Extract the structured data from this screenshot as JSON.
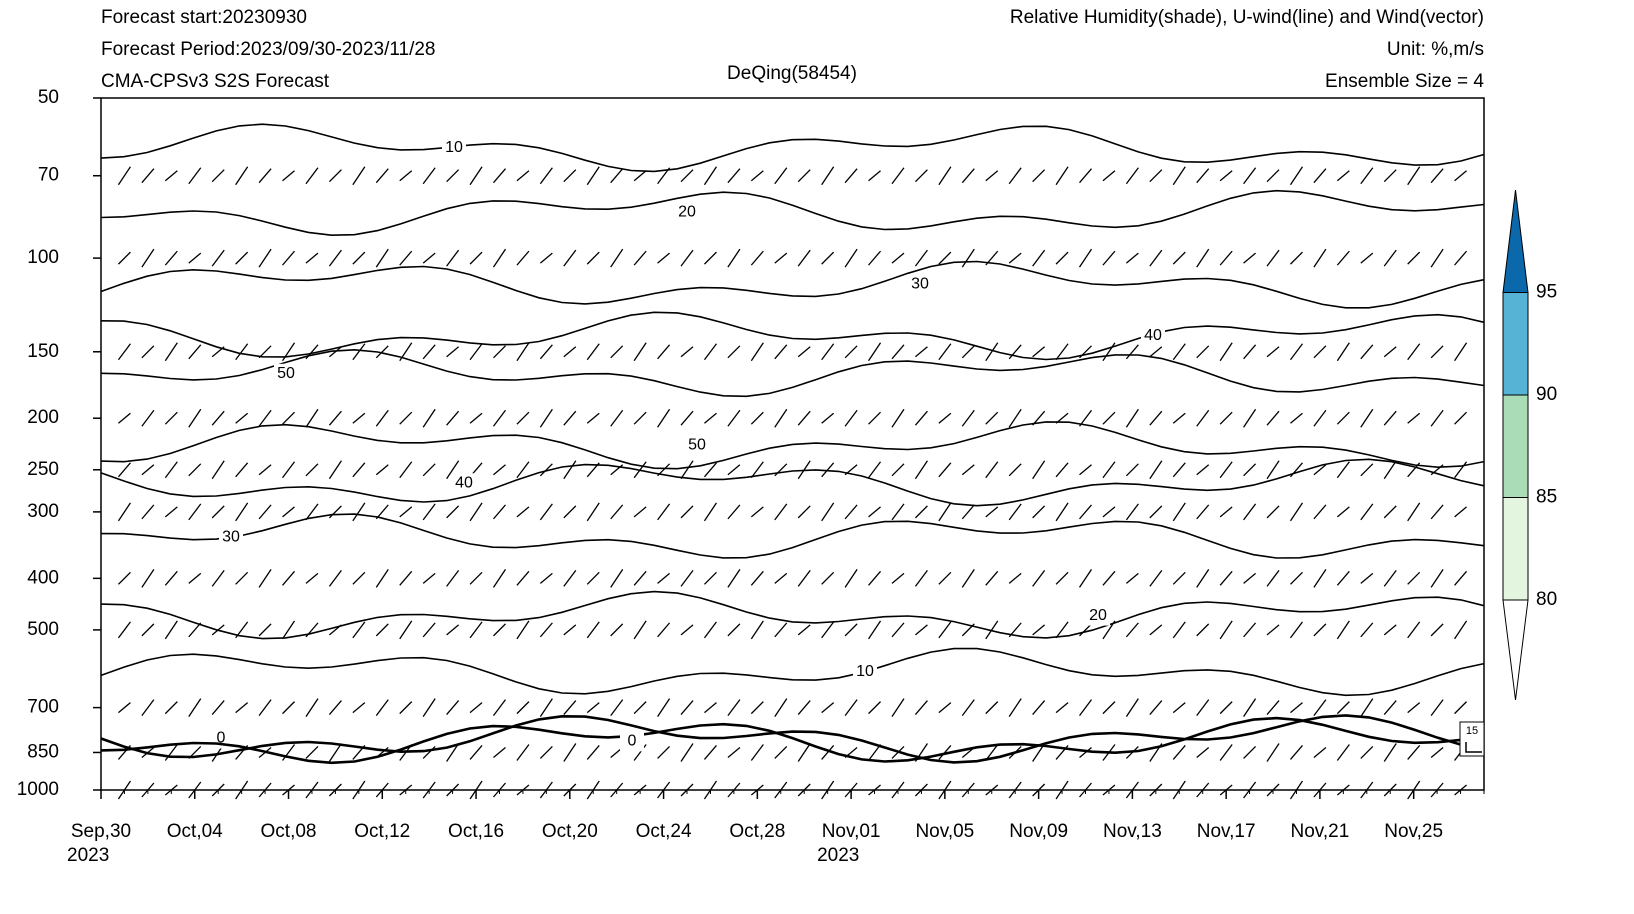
{
  "chart_data": {
    "type": "contour",
    "title": "DeQing(58454)",
    "header_left": [
      "Forecast start:20230930",
      "Forecast Period:2023/09/30-2023/11/28",
      "CMA-CPSv3 S2S Forecast"
    ],
    "header_right": [
      "Relative Humidity(shade), U-wind(line) and Wind(vector)",
      "Unit: %,m/s",
      "Ensemble Size = 4"
    ],
    "xlim": [
      "2023-09-30",
      "2023-11-28"
    ],
    "xticks": [
      {
        "value": "2023-09-30",
        "label": "Sep,30",
        "sublabel": "2023"
      },
      {
        "value": "2023-10-04",
        "label": "Oct,04"
      },
      {
        "value": "2023-10-08",
        "label": "Oct,08"
      },
      {
        "value": "2023-10-12",
        "label": "Oct,12"
      },
      {
        "value": "2023-10-16",
        "label": "Oct,16"
      },
      {
        "value": "2023-10-20",
        "label": "Oct,20"
      },
      {
        "value": "2023-10-24",
        "label": "Oct,24"
      },
      {
        "value": "2023-10-28",
        "label": "Oct,28"
      },
      {
        "value": "2023-11-01",
        "label": "Nov,01",
        "sublabel": "2023"
      },
      {
        "value": "2023-11-05",
        "label": "Nov,05"
      },
      {
        "value": "2023-11-09",
        "label": "Nov,09"
      },
      {
        "value": "2023-11-13",
        "label": "Nov,13"
      },
      {
        "value": "2023-11-17",
        "label": "Nov,17"
      },
      {
        "value": "2023-11-21",
        "label": "Nov,21"
      },
      {
        "value": "2023-11-25",
        "label": "Nov,25"
      }
    ],
    "ylim": [
      1000,
      50
    ],
    "y_log": true,
    "yticks": [
      50,
      70,
      100,
      150,
      200,
      250,
      300,
      400,
      500,
      700,
      850,
      1000
    ],
    "contour_levels": [
      0,
      10,
      20,
      30,
      40,
      50
    ],
    "colorbar": {
      "levels": [
        80,
        85,
        90,
        95
      ],
      "colors": [
        "#ffffff",
        "#e3f4df",
        "#abdcb8",
        "#56b3d6",
        "#0b68ab"
      ]
    },
    "vector_reference": 15
  }
}
